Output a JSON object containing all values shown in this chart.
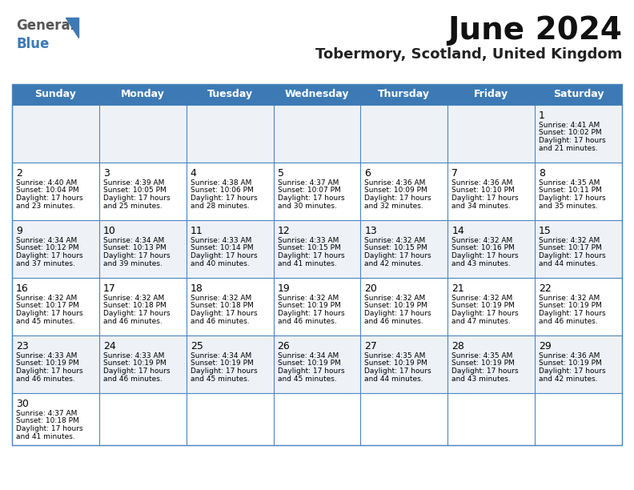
{
  "title": "June 2024",
  "subtitle": "Tobermory, Scotland, United Kingdom",
  "days_of_week": [
    "Sunday",
    "Monday",
    "Tuesday",
    "Wednesday",
    "Thursday",
    "Friday",
    "Saturday"
  ],
  "header_bg": "#3d7ab5",
  "header_text": "#ffffff",
  "cell_bg_even": "#eef2f7",
  "cell_bg_odd": "#ffffff",
  "border_color": "#4a86c1",
  "text_color": "#000000",
  "logo_general_color": "#444444",
  "logo_blue_color": "#3d7ab5",
  "logo_triangle_color": "#3d7ab5",
  "calendar_data": [
    [
      null,
      null,
      null,
      null,
      null,
      null,
      {
        "day": 1,
        "sunrise": "4:41 AM",
        "sunset": "10:02 PM",
        "daylight": "17 hours",
        "daylight2": "and 21 minutes."
      }
    ],
    [
      {
        "day": 2,
        "sunrise": "4:40 AM",
        "sunset": "10:04 PM",
        "daylight": "17 hours",
        "daylight2": "and 23 minutes."
      },
      {
        "day": 3,
        "sunrise": "4:39 AM",
        "sunset": "10:05 PM",
        "daylight": "17 hours",
        "daylight2": "and 25 minutes."
      },
      {
        "day": 4,
        "sunrise": "4:38 AM",
        "sunset": "10:06 PM",
        "daylight": "17 hours",
        "daylight2": "and 28 minutes."
      },
      {
        "day": 5,
        "sunrise": "4:37 AM",
        "sunset": "10:07 PM",
        "daylight": "17 hours",
        "daylight2": "and 30 minutes."
      },
      {
        "day": 6,
        "sunrise": "4:36 AM",
        "sunset": "10:09 PM",
        "daylight": "17 hours",
        "daylight2": "and 32 minutes."
      },
      {
        "day": 7,
        "sunrise": "4:36 AM",
        "sunset": "10:10 PM",
        "daylight": "17 hours",
        "daylight2": "and 34 minutes."
      },
      {
        "day": 8,
        "sunrise": "4:35 AM",
        "sunset": "10:11 PM",
        "daylight": "17 hours",
        "daylight2": "and 35 minutes."
      }
    ],
    [
      {
        "day": 9,
        "sunrise": "4:34 AM",
        "sunset": "10:12 PM",
        "daylight": "17 hours",
        "daylight2": "and 37 minutes."
      },
      {
        "day": 10,
        "sunrise": "4:34 AM",
        "sunset": "10:13 PM",
        "daylight": "17 hours",
        "daylight2": "and 39 minutes."
      },
      {
        "day": 11,
        "sunrise": "4:33 AM",
        "sunset": "10:14 PM",
        "daylight": "17 hours",
        "daylight2": "and 40 minutes."
      },
      {
        "day": 12,
        "sunrise": "4:33 AM",
        "sunset": "10:15 PM",
        "daylight": "17 hours",
        "daylight2": "and 41 minutes."
      },
      {
        "day": 13,
        "sunrise": "4:32 AM",
        "sunset": "10:15 PM",
        "daylight": "17 hours",
        "daylight2": "and 42 minutes."
      },
      {
        "day": 14,
        "sunrise": "4:32 AM",
        "sunset": "10:16 PM",
        "daylight": "17 hours",
        "daylight2": "and 43 minutes."
      },
      {
        "day": 15,
        "sunrise": "4:32 AM",
        "sunset": "10:17 PM",
        "daylight": "17 hours",
        "daylight2": "and 44 minutes."
      }
    ],
    [
      {
        "day": 16,
        "sunrise": "4:32 AM",
        "sunset": "10:17 PM",
        "daylight": "17 hours",
        "daylight2": "and 45 minutes."
      },
      {
        "day": 17,
        "sunrise": "4:32 AM",
        "sunset": "10:18 PM",
        "daylight": "17 hours",
        "daylight2": "and 46 minutes."
      },
      {
        "day": 18,
        "sunrise": "4:32 AM",
        "sunset": "10:18 PM",
        "daylight": "17 hours",
        "daylight2": "and 46 minutes."
      },
      {
        "day": 19,
        "sunrise": "4:32 AM",
        "sunset": "10:19 PM",
        "daylight": "17 hours",
        "daylight2": "and 46 minutes."
      },
      {
        "day": 20,
        "sunrise": "4:32 AM",
        "sunset": "10:19 PM",
        "daylight": "17 hours",
        "daylight2": "and 46 minutes."
      },
      {
        "day": 21,
        "sunrise": "4:32 AM",
        "sunset": "10:19 PM",
        "daylight": "17 hours",
        "daylight2": "and 47 minutes."
      },
      {
        "day": 22,
        "sunrise": "4:32 AM",
        "sunset": "10:19 PM",
        "daylight": "17 hours",
        "daylight2": "and 46 minutes."
      }
    ],
    [
      {
        "day": 23,
        "sunrise": "4:33 AM",
        "sunset": "10:19 PM",
        "daylight": "17 hours",
        "daylight2": "and 46 minutes."
      },
      {
        "day": 24,
        "sunrise": "4:33 AM",
        "sunset": "10:19 PM",
        "daylight": "17 hours",
        "daylight2": "and 46 minutes."
      },
      {
        "day": 25,
        "sunrise": "4:34 AM",
        "sunset": "10:19 PM",
        "daylight": "17 hours",
        "daylight2": "and 45 minutes."
      },
      {
        "day": 26,
        "sunrise": "4:34 AM",
        "sunset": "10:19 PM",
        "daylight": "17 hours",
        "daylight2": "and 45 minutes."
      },
      {
        "day": 27,
        "sunrise": "4:35 AM",
        "sunset": "10:19 PM",
        "daylight": "17 hours",
        "daylight2": "and 44 minutes."
      },
      {
        "day": 28,
        "sunrise": "4:35 AM",
        "sunset": "10:19 PM",
        "daylight": "17 hours",
        "daylight2": "and 43 minutes."
      },
      {
        "day": 29,
        "sunrise": "4:36 AM",
        "sunset": "10:19 PM",
        "daylight": "17 hours",
        "daylight2": "and 42 minutes."
      }
    ],
    [
      {
        "day": 30,
        "sunrise": "4:37 AM",
        "sunset": "10:18 PM",
        "daylight": "17 hours",
        "daylight2": "and 41 minutes."
      },
      null,
      null,
      null,
      null,
      null,
      null
    ]
  ]
}
